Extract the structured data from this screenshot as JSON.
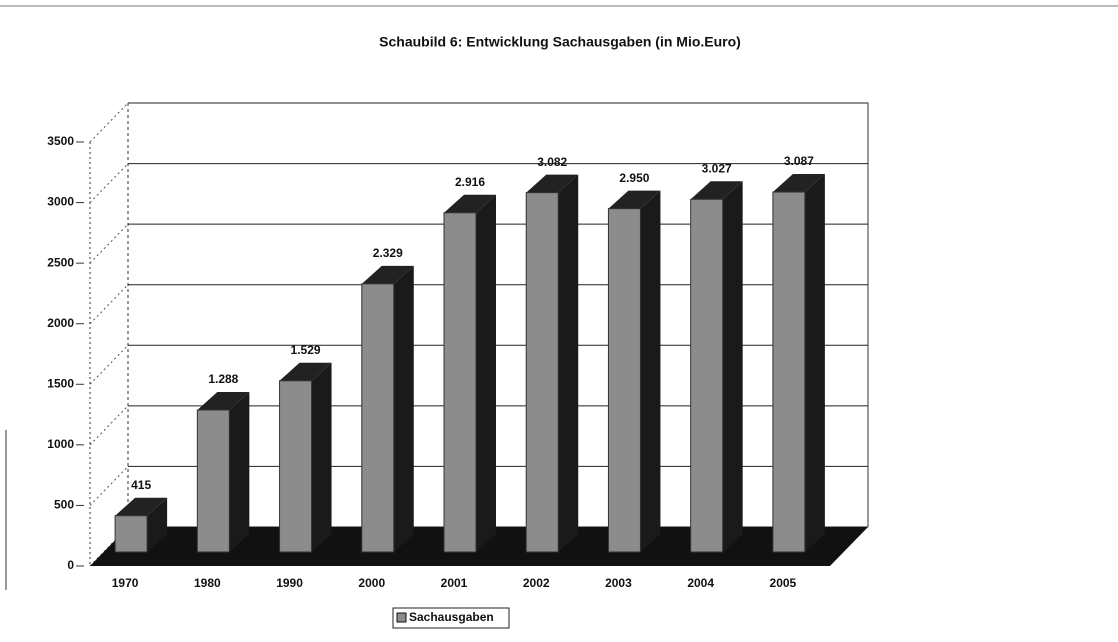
{
  "chart_data": {
    "type": "bar3d",
    "title": "Schaubild 6: Entwicklung  Sachausgaben (in Mio.Euro)",
    "categories": [
      "1970",
      "1980",
      "1990",
      "2000",
      "2001",
      "2002",
      "2003",
      "2004",
      "2005"
    ],
    "series": [
      {
        "name": "Sachausgaben",
        "color": "#8c8c8c",
        "values": [
          415,
          1288,
          1529,
          2329,
          2916,
          3082,
          2950,
          3027,
          3087
        ],
        "value_labels": [
          "415",
          "1.288",
          "1.529",
          "2.329",
          "2.916",
          "3.082",
          "2.950",
          "3.027",
          "3.087"
        ]
      }
    ],
    "ylim": [
      0,
      3500
    ],
    "yticks": [
      0,
      500,
      1000,
      1500,
      2000,
      2500,
      3000,
      3500
    ],
    "grid": true
  }
}
